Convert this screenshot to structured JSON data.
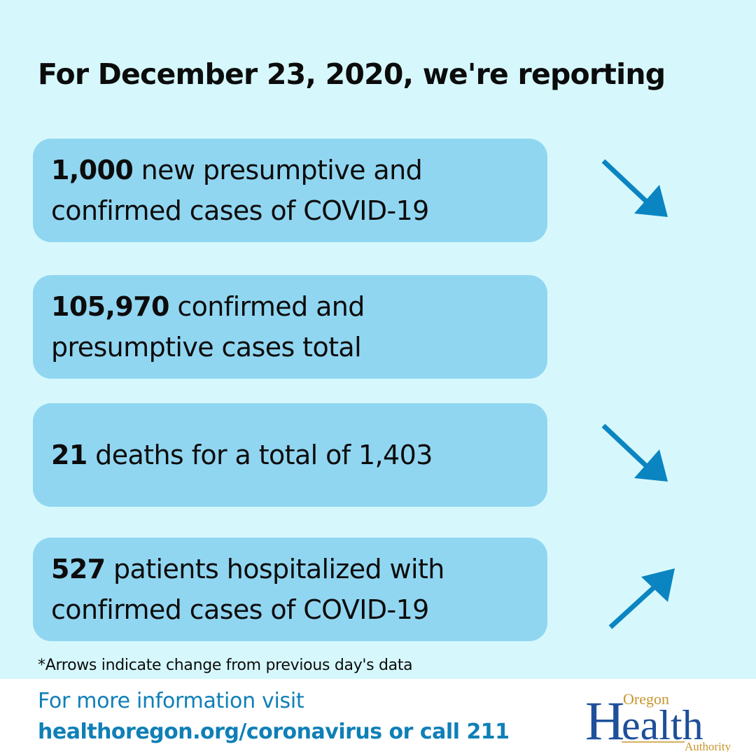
{
  "header": {
    "title": "For December 23, 2020, we're reporting"
  },
  "cards": [
    {
      "bold": "1,000",
      "line1_rest": " new presumptive and",
      "line2": "confirmed cases of COVID-19",
      "arrow": "arrow-down-right-icon"
    },
    {
      "bold": "105,970",
      "line1_rest": " confirmed and",
      "line2": "presumptive cases total",
      "arrow": null
    },
    {
      "bold": "21",
      "line1_rest": " deaths for a total of 1,403",
      "line2": "",
      "arrow": "arrow-down-right-icon"
    },
    {
      "bold": "527",
      "line1_rest": " patients hospitalized with",
      "line2": "confirmed cases of COVID-19",
      "arrow": "arrow-up-right-icon"
    }
  ],
  "note": "*Arrows indicate change from previous day's data",
  "footer": {
    "line1": "For more information visit",
    "line2": "healthoregon.org/coronavirus or call 211"
  },
  "logo": {
    "top": "Oregon",
    "main": "Health",
    "bottom": "Authority"
  },
  "colors": {
    "background": "#d6f8fc",
    "card": "#91d6f1",
    "arrow": "#0a85c1",
    "footer_text": "#0f7fb7",
    "logo_blue": "#1e4f9a",
    "logo_gold": "#c9952b"
  }
}
